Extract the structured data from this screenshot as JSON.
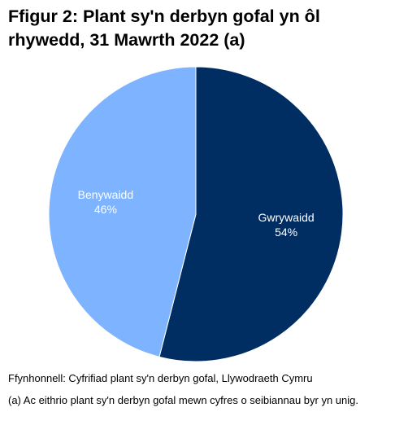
{
  "chart_data": {
    "type": "pie",
    "title": "Ffigur 2: Plant sy'n derbyn gofal yn ôl rhywedd, 31 Mawrth 2022 (a)",
    "categories": [
      "Gwrywaidd",
      "Benywaidd"
    ],
    "values": [
      54,
      46
    ],
    "value_labels": [
      "54%",
      "46%"
    ],
    "unit": "%",
    "colors": [
      "#002D62",
      "#7EB3FF"
    ],
    "slice_edge_color": "#ffffff",
    "start_angle": "12 o'clock, clockwise",
    "legend": "none",
    "source": "Ffynhonnell: Cyfrifiad plant sy'n derbyn gofal, Llywodraeth Cymru",
    "note": "(a) Ac eithrio plant sy'n derbyn gofal mewn cyfres o seibiannau byr yn unig."
  }
}
